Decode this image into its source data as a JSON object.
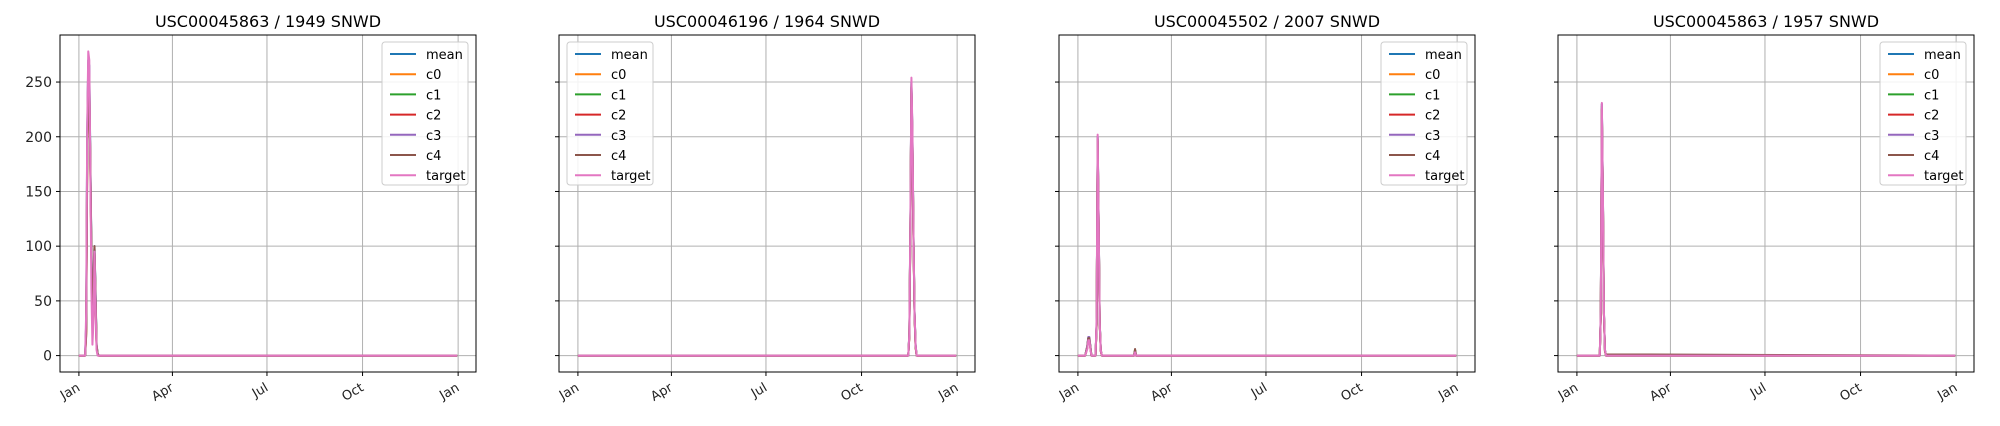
{
  "colors": {
    "mean": "#1f77b4",
    "c0": "#ff7f0e",
    "c1": "#2ca02c",
    "c2": "#d62728",
    "c3": "#9467bd",
    "c4": "#8c564b",
    "target": "#e377c2"
  },
  "legend_labels": [
    "mean",
    "c0",
    "c1",
    "c2",
    "c3",
    "c4",
    "target"
  ],
  "chart_data": [
    {
      "type": "line",
      "title": "USC00045863 / 1949    SNWD",
      "xlabel": "",
      "ylabel": "",
      "x_ticks": [
        "Jan",
        "Apr",
        "Jul",
        "Oct",
        "Jan"
      ],
      "y_ticks": [
        0,
        50,
        100,
        150,
        200,
        250
      ],
      "ylim": [
        -15,
        293
      ],
      "grid": true,
      "legend": "upper right",
      "series": [
        {
          "name": "mean",
          "x": [
            1,
            7,
            8,
            9,
            10,
            11,
            12,
            13,
            14,
            15,
            16,
            17,
            18,
            19,
            20,
            25,
            30,
            365
          ],
          "y": [
            0,
            0,
            30,
            205,
            270,
            265,
            180,
            100,
            40,
            60,
            100,
            60,
            10,
            2,
            0,
            0,
            0,
            0
          ]
        },
        {
          "name": "c0",
          "x": [
            1,
            7,
            8,
            9,
            10,
            11,
            12,
            13,
            14,
            15,
            16,
            17,
            18,
            19,
            20,
            365
          ],
          "y": [
            0,
            0,
            20,
            180,
            260,
            250,
            170,
            90,
            30,
            50,
            95,
            50,
            8,
            1,
            0,
            0
          ]
        },
        {
          "name": "c1",
          "x": [
            1,
            7,
            8,
            9,
            10,
            11,
            12,
            13,
            14,
            15,
            16,
            17,
            18,
            19,
            20,
            365
          ],
          "y": [
            0,
            0,
            25,
            190,
            265,
            255,
            175,
            95,
            35,
            55,
            98,
            55,
            9,
            1,
            0,
            0
          ]
        },
        {
          "name": "c2",
          "x": [
            1,
            7,
            8,
            9,
            10,
            11,
            12,
            13,
            14,
            15,
            16,
            17,
            18,
            19,
            20,
            365
          ],
          "y": [
            0,
            0,
            22,
            185,
            262,
            250,
            172,
            92,
            32,
            52,
            96,
            52,
            8,
            1,
            0,
            0
          ]
        },
        {
          "name": "c3",
          "x": [
            1,
            7,
            8,
            9,
            10,
            11,
            12,
            13,
            14,
            15,
            16,
            17,
            18,
            19,
            20,
            365
          ],
          "y": [
            0,
            0,
            28,
            200,
            268,
            260,
            178,
            98,
            38,
            58,
            99,
            58,
            9,
            2,
            0,
            0
          ]
        },
        {
          "name": "c4",
          "x": [
            1,
            7,
            8,
            9,
            10,
            11,
            12,
            13,
            14,
            15,
            16,
            17,
            18,
            19,
            20,
            365
          ],
          "y": [
            0,
            0,
            18,
            170,
            255,
            240,
            178,
            95,
            30,
            60,
            100,
            55,
            10,
            2,
            0,
            0
          ]
        },
        {
          "name": "target",
          "x": [
            1,
            7,
            8,
            9,
            10,
            11,
            12,
            13,
            14,
            15,
            16,
            17,
            18,
            19,
            20,
            365
          ],
          "y": [
            0,
            0,
            40,
            210,
            278,
            270,
            170,
            60,
            10,
            30,
            95,
            45,
            5,
            0,
            0,
            0
          ]
        }
      ]
    },
    {
      "type": "line",
      "title": "USC00046196 / 1964    SNWD",
      "xlabel": "",
      "ylabel": "",
      "x_ticks": [
        "Jan",
        "Apr",
        "Jul",
        "Oct",
        "Jan"
      ],
      "y_ticks": [
        0,
        50,
        100,
        150,
        200,
        250
      ],
      "ylim": [
        -15,
        293
      ],
      "grid": true,
      "legend": "upper left",
      "series": [
        {
          "name": "mean",
          "x": [
            1,
            319,
            320,
            321,
            322,
            323,
            324,
            325,
            326,
            327,
            365
          ],
          "y": [
            0,
            0,
            20,
            120,
            250,
            200,
            110,
            40,
            10,
            0,
            0
          ]
        },
        {
          "name": "c0",
          "x": [
            1,
            319,
            320,
            321,
            322,
            323,
            324,
            325,
            326,
            327,
            365
          ],
          "y": [
            0,
            0,
            18,
            115,
            245,
            195,
            105,
            38,
            8,
            0,
            0
          ]
        },
        {
          "name": "c1",
          "x": [
            1,
            319,
            320,
            321,
            322,
            323,
            324,
            325,
            326,
            327,
            365
          ],
          "y": [
            0,
            0,
            19,
            118,
            248,
            198,
            108,
            39,
            9,
            0,
            0
          ]
        },
        {
          "name": "c2",
          "x": [
            1,
            319,
            320,
            321,
            322,
            323,
            324,
            325,
            326,
            327,
            365
          ],
          "y": [
            0,
            0,
            18,
            116,
            246,
            196,
            106,
            38,
            8,
            0,
            0
          ]
        },
        {
          "name": "c3",
          "x": [
            1,
            319,
            320,
            321,
            322,
            323,
            324,
            325,
            326,
            327,
            365
          ],
          "y": [
            0,
            0,
            20,
            120,
            250,
            200,
            110,
            40,
            10,
            0,
            0
          ]
        },
        {
          "name": "c4",
          "x": [
            1,
            319,
            320,
            321,
            322,
            323,
            324,
            325,
            326,
            327,
            365
          ],
          "y": [
            0,
            0,
            18,
            115,
            245,
            195,
            105,
            38,
            8,
            0,
            0
          ]
        },
        {
          "name": "target",
          "x": [
            1,
            319,
            320,
            321,
            322,
            323,
            324,
            325,
            326,
            327,
            365
          ],
          "y": [
            0,
            0,
            20,
            125,
            254,
            205,
            110,
            40,
            10,
            0,
            0
          ]
        }
      ]
    },
    {
      "type": "line",
      "title": "USC00045502 / 2007    SNWD",
      "xlabel": "",
      "ylabel": "",
      "x_ticks": [
        "Jan",
        "Apr",
        "Jul",
        "Oct",
        "Jan"
      ],
      "y_ticks": [
        0,
        50,
        100,
        150,
        200,
        250
      ],
      "ylim": [
        -15,
        293
      ],
      "grid": true,
      "legend": "upper right",
      "series": [
        {
          "name": "mean",
          "x": [
            1,
            8,
            10,
            11,
            12,
            13,
            14,
            15,
            18,
            19,
            20,
            21,
            22,
            23,
            24,
            25,
            55,
            56,
            57,
            365
          ],
          "y": [
            0,
            0,
            8,
            16,
            16,
            8,
            0,
            0,
            0,
            30,
            200,
            120,
            30,
            5,
            0,
            0,
            0,
            5,
            0,
            0
          ]
        },
        {
          "name": "c0",
          "x": [
            1,
            8,
            10,
            11,
            12,
            13,
            14,
            15,
            18,
            19,
            20,
            21,
            22,
            23,
            24,
            25,
            55,
            56,
            57,
            365
          ],
          "y": [
            0,
            0,
            7,
            15,
            15,
            7,
            0,
            0,
            0,
            28,
            195,
            115,
            28,
            4,
            0,
            0,
            0,
            4,
            0,
            0
          ]
        },
        {
          "name": "c1",
          "x": [
            1,
            8,
            10,
            11,
            12,
            13,
            14,
            15,
            18,
            19,
            20,
            21,
            22,
            23,
            24,
            25,
            55,
            56,
            57,
            365
          ],
          "y": [
            0,
            0,
            8,
            16,
            16,
            8,
            0,
            0,
            0,
            29,
            198,
            118,
            29,
            5,
            0,
            0,
            0,
            5,
            0,
            0
          ]
        },
        {
          "name": "c2",
          "x": [
            1,
            8,
            10,
            11,
            12,
            13,
            14,
            15,
            18,
            19,
            20,
            21,
            22,
            23,
            24,
            25,
            55,
            56,
            57,
            365
          ],
          "y": [
            0,
            0,
            7,
            15,
            15,
            7,
            0,
            0,
            0,
            28,
            196,
            116,
            28,
            4,
            0,
            0,
            0,
            4,
            0,
            0
          ]
        },
        {
          "name": "c3",
          "x": [
            1,
            8,
            10,
            11,
            12,
            13,
            14,
            15,
            18,
            19,
            20,
            21,
            22,
            23,
            24,
            25,
            55,
            56,
            57,
            365
          ],
          "y": [
            0,
            0,
            9,
            17,
            17,
            9,
            0,
            0,
            0,
            30,
            200,
            120,
            30,
            5,
            0,
            0,
            0,
            5,
            0,
            0
          ]
        },
        {
          "name": "c4",
          "x": [
            1,
            8,
            10,
            11,
            12,
            13,
            14,
            15,
            18,
            19,
            20,
            21,
            22,
            23,
            24,
            25,
            55,
            56,
            57,
            365
          ],
          "y": [
            0,
            0,
            8,
            16,
            16,
            8,
            0,
            0,
            0,
            29,
            198,
            118,
            29,
            5,
            0,
            0,
            0,
            6,
            0,
            0
          ]
        },
        {
          "name": "target",
          "x": [
            1,
            8,
            10,
            11,
            12,
            13,
            14,
            15,
            18,
            19,
            20,
            21,
            22,
            23,
            24,
            25,
            55,
            56,
            57,
            365
          ],
          "y": [
            0,
            0,
            6,
            14,
            14,
            6,
            0,
            0,
            0,
            35,
            202,
            120,
            30,
            5,
            0,
            0,
            0,
            3,
            0,
            0
          ]
        }
      ]
    },
    {
      "type": "line",
      "title": "USC00045863 / 1957    SNWD",
      "xlabel": "",
      "ylabel": "",
      "x_ticks": [
        "Jan",
        "Apr",
        "Jul",
        "Oct",
        "Jan"
      ],
      "y_ticks": [
        0,
        50,
        100,
        150,
        200,
        250
      ],
      "ylim": [
        -15,
        293
      ],
      "grid": true,
      "legend": "upper right",
      "series": [
        {
          "name": "mean",
          "x": [
            1,
            23,
            24,
            25,
            26,
            27,
            28,
            29,
            30,
            58,
            365
          ],
          "y": [
            0,
            0,
            40,
            230,
            150,
            40,
            5,
            0,
            0,
            0,
            0
          ]
        },
        {
          "name": "c0",
          "x": [
            1,
            23,
            24,
            25,
            26,
            27,
            28,
            29,
            30,
            58,
            365
          ],
          "y": [
            0,
            0,
            38,
            225,
            145,
            38,
            4,
            0,
            0,
            0,
            0
          ]
        },
        {
          "name": "c1",
          "x": [
            1,
            23,
            24,
            25,
            26,
            27,
            28,
            29,
            30,
            58,
            365
          ],
          "y": [
            0,
            0,
            39,
            228,
            148,
            39,
            5,
            0,
            0,
            0,
            0
          ]
        },
        {
          "name": "c2",
          "x": [
            1,
            23,
            24,
            25,
            26,
            27,
            28,
            29,
            30,
            58,
            365
          ],
          "y": [
            0,
            0,
            38,
            226,
            146,
            38,
            4,
            0,
            0,
            0,
            0
          ]
        },
        {
          "name": "c3",
          "x": [
            1,
            23,
            24,
            25,
            26,
            27,
            28,
            29,
            30,
            58,
            365
          ],
          "y": [
            0,
            0,
            40,
            230,
            150,
            40,
            5,
            0,
            0,
            0,
            0
          ]
        },
        {
          "name": "c4",
          "x": [
            1,
            23,
            24,
            25,
            26,
            27,
            28,
            29,
            30,
            58,
            365
          ],
          "y": [
            0,
            0,
            38,
            225,
            145,
            38,
            4,
            1,
            1,
            1,
            0
          ]
        },
        {
          "name": "target",
          "x": [
            1,
            23,
            24,
            25,
            26,
            27,
            28,
            29,
            30,
            58,
            365
          ],
          "y": [
            0,
            0,
            42,
            231,
            150,
            40,
            5,
            0,
            0,
            0,
            0
          ]
        }
      ]
    }
  ]
}
